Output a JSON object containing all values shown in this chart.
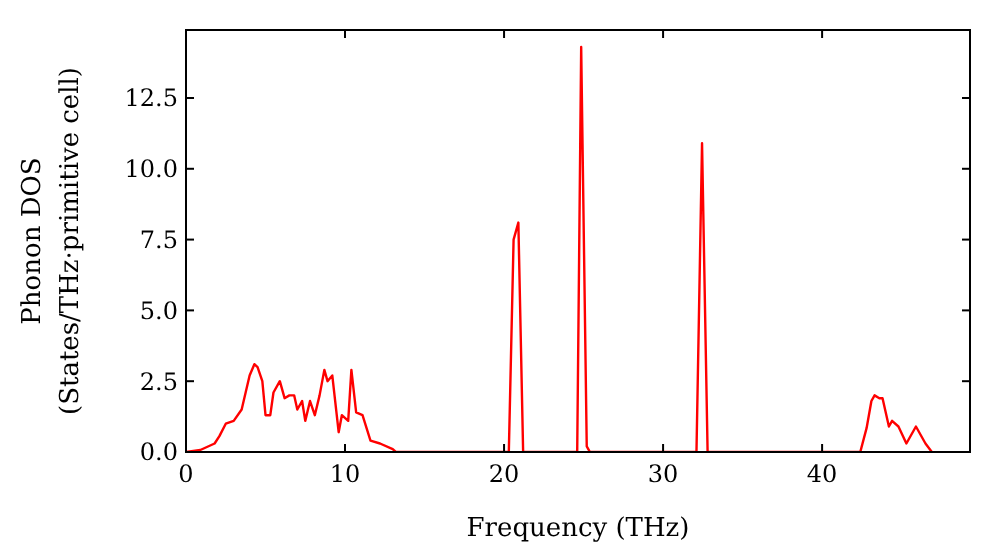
{
  "chart_data": {
    "type": "line",
    "xlabel": "Frequency (THz)",
    "ylabel": "Phonon DOS\n(States/THz·primitive cell)",
    "xlim": [
      0,
      49.3
    ],
    "ylim": [
      0,
      14.9
    ],
    "xticks": [
      0,
      10,
      20,
      30,
      40
    ],
    "yticks": [
      {
        "value": 0,
        "label": "0.0"
      },
      {
        "value": 2.5,
        "label": "2.5"
      },
      {
        "value": 5,
        "label": "5.0"
      },
      {
        "value": 7.5,
        "label": "7.5"
      },
      {
        "value": 10,
        "label": "10.0"
      },
      {
        "value": 12.5,
        "label": "12.5"
      }
    ],
    "grid": false,
    "marker": "none",
    "line_style": "solid",
    "series": [
      {
        "color": "#ff0000",
        "x": [
          0,
          0.9,
          1.8,
          2.1,
          2.5,
          3.0,
          3.5,
          4.0,
          4.3,
          4.5,
          4.8,
          5.0,
          5.3,
          5.5,
          5.9,
          6.2,
          6.5,
          6.8,
          7.0,
          7.3,
          7.5,
          7.8,
          8.1,
          8.4,
          8.7,
          8.9,
          9.2,
          9.6,
          9.8,
          10.2,
          10.4,
          10.7,
          11.1,
          11.6,
          12.2,
          13.0,
          13.2,
          20.3,
          20.6,
          20.9,
          21.2,
          24.6,
          24.85,
          25.2,
          25.4,
          32.1,
          32.45,
          32.8,
          42.4,
          42.8,
          43.1,
          43.3,
          43.6,
          43.8,
          44.2,
          44.4,
          44.8,
          45.3,
          45.9,
          46.5,
          46.9
        ],
        "values": [
          0,
          0.07,
          0.3,
          0.56,
          1.0,
          1.1,
          1.5,
          2.7,
          3.1,
          3.0,
          2.5,
          1.3,
          1.3,
          2.1,
          2.5,
          1.9,
          2.0,
          2.0,
          1.5,
          1.8,
          1.1,
          1.8,
          1.3,
          2.0,
          2.9,
          2.5,
          2.7,
          0.7,
          1.3,
          1.1,
          2.9,
          1.4,
          1.3,
          0.4,
          0.3,
          0.1,
          0,
          0,
          7.5,
          8.1,
          0,
          0,
          14.3,
          0.2,
          0,
          0,
          10.9,
          0,
          0,
          0.85,
          1.8,
          2.0,
          1.9,
          1.9,
          0.9,
          1.1,
          0.9,
          0.3,
          0.9,
          0.3,
          0
        ]
      }
    ]
  }
}
